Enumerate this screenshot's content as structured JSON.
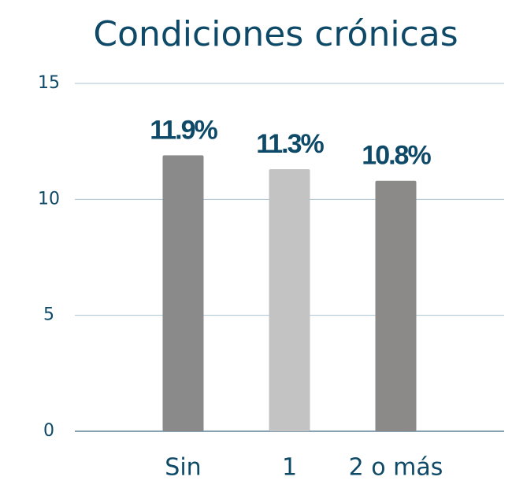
{
  "chart_data": {
    "type": "bar",
    "title": "Condiciones crónicas",
    "categories": [
      "Sin",
      "1",
      "2 o más"
    ],
    "values": [
      11.9,
      11.3,
      10.8
    ],
    "value_labels": [
      "11.9%",
      "11.3%",
      "10.8%"
    ],
    "colors": [
      "#8a8a8a",
      "#c3c3c3",
      "#8b8a88"
    ],
    "ylim": [
      0,
      15
    ],
    "yticks": [
      0,
      5,
      10,
      15
    ],
    "grid": true
  }
}
